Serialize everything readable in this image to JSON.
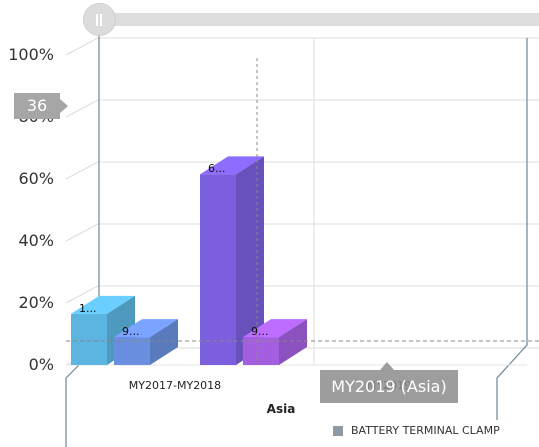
{
  "chart_data": {
    "type": "bar",
    "categories": [
      "MY2017-MY2018",
      "MY2019"
    ],
    "series": [
      {
        "name": "BATTERY TERMINAL CLAMP",
        "values": [
          16.5,
          61.5
        ],
        "labels": [
          "1...",
          "6..."
        ],
        "color": "#5cb4e0"
      },
      {
        "values": [
          9,
          9
        ],
        "labels": [
          "9...",
          "9..."
        ],
        "color": "#6a8fe0"
      }
    ],
    "bar_colors": [
      [
        "#5cb4e0",
        "#6a8fe0"
      ],
      [
        "#7b5fdc",
        "#a45fe0"
      ]
    ],
    "y_ticks": [
      "0%",
      "20%",
      "40%",
      "60%",
      "80%",
      "100%"
    ],
    "ylim": [
      0,
      100
    ],
    "xlabel": "Asia",
    "legend_position": "bottom-right",
    "grid": true
  },
  "crosshair": {
    "value": "36"
  },
  "tooltip": {
    "text": "MY2019 (Asia)"
  },
  "legend": {
    "label": "BATTERY TERMINAL CLAMP",
    "color": "#8c9aa3"
  }
}
